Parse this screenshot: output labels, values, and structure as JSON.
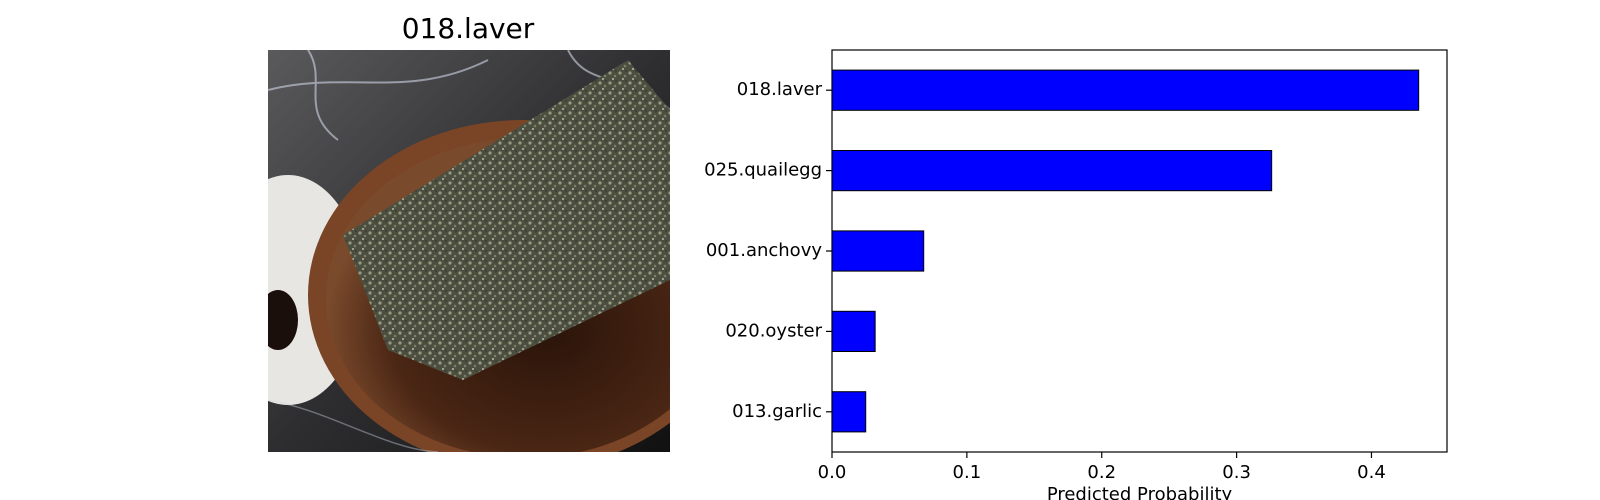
{
  "image_panel": {
    "title": "018.laver"
  },
  "chart_data": {
    "type": "bar",
    "orientation": "horizontal",
    "categories": [
      "018.laver",
      "025.quailegg",
      "001.anchovy",
      "020.oyster",
      "013.garlic"
    ],
    "values": [
      0.435,
      0.326,
      0.068,
      0.032,
      0.025
    ],
    "xlabel": "Predicted Probability",
    "ylabel": "",
    "xlim": [
      0,
      0.456
    ],
    "xticks": [
      0.0,
      0.1,
      0.2,
      0.3,
      0.4
    ],
    "xtick_labels": [
      "0.0",
      "0.1",
      "0.2",
      "0.3",
      "0.4"
    ],
    "bar_color": "#0000ff",
    "edge_color": "#000000",
    "grid": false
  }
}
